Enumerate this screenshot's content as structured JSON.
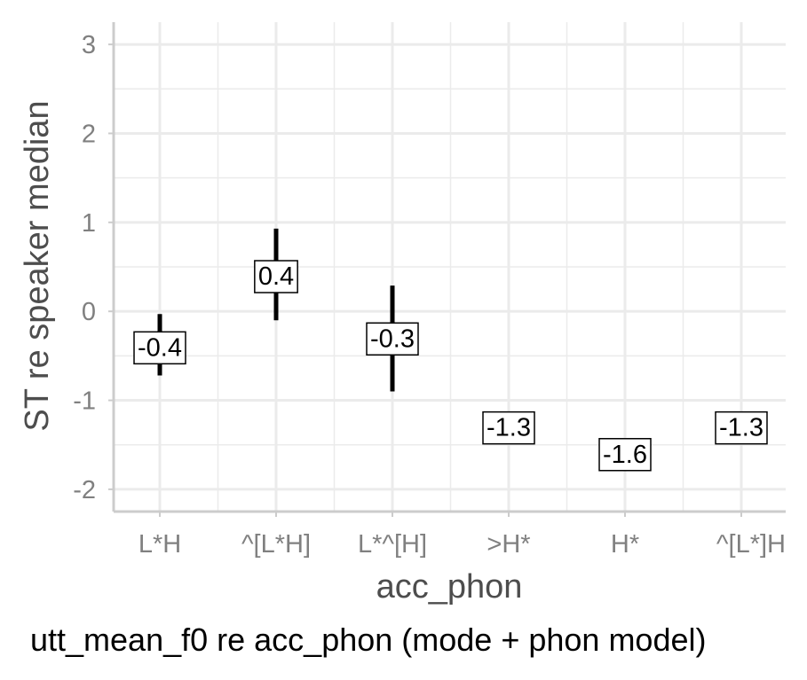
{
  "chart_data": {
    "type": "pointrange",
    "xlabel": "acc_phon",
    "ylabel": "ST re speaker median",
    "caption": "utt_mean_f0 re acc_phon (mode + phon model)",
    "categories": [
      "L*H",
      "^[L*H]",
      "L*^[H]",
      ">H*",
      "H*",
      "^[L*]H"
    ],
    "values": [
      -0.4,
      0.4,
      -0.3,
      -1.3,
      -1.6,
      -1.3
    ],
    "labels": [
      "-0.4",
      "0.4",
      "-0.3",
      "-1.3",
      "-1.6",
      "-1.3"
    ],
    "lower": [
      -0.72,
      -0.1,
      -0.9,
      null,
      null,
      null
    ],
    "upper": [
      -0.03,
      0.93,
      0.29,
      null,
      null,
      null
    ],
    "yticks": [
      -2,
      -1,
      0,
      1,
      2,
      3
    ],
    "ytick_labels": [
      "-2",
      "-1",
      "0",
      "1",
      "2",
      "3"
    ],
    "ylim": [
      -2.25,
      3.25
    ],
    "grid": true,
    "legend": "none",
    "colors": {
      "grid": "#ebebeb",
      "axis": "#cccccc",
      "mark": "#000000",
      "tick_text": "#808080",
      "title_text": "#4d4d4d"
    }
  }
}
